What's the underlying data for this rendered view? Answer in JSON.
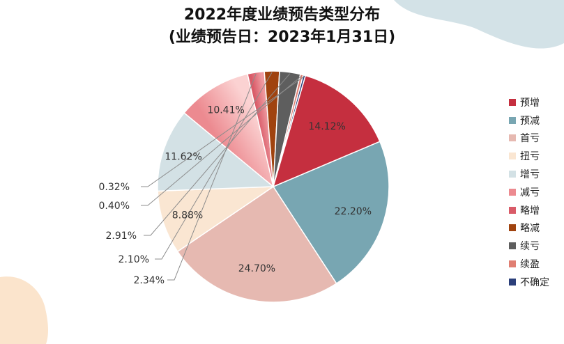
{
  "colors": {
    "background_blob": "#d3e2e7",
    "corner_blob": "#fbe4cc",
    "slice_border": "#ffffff",
    "leader_line": "#8c8c8c"
  },
  "chart_data": {
    "type": "pie",
    "title": "2022年度业绩预告类型分布",
    "subtitle": "(业绩预告日：2023年1月31日)",
    "legend_position": "right",
    "start_angle_deg": 67,
    "direction": "clockwise",
    "slices": [
      {
        "name": "预减",
        "value": 22.2,
        "label": "22.20%",
        "color": "#78a6b2",
        "color_light": "#78a6b2"
      },
      {
        "name": "首亏",
        "value": 24.7,
        "label": "24.70%",
        "color": "#e6b9b1",
        "color_light": "#e6b9b1"
      },
      {
        "name": "扭亏",
        "value": 8.88,
        "label": "8.88%",
        "color": "#fae6d2",
        "color_light": "#fae6d2"
      },
      {
        "name": "增亏",
        "value": 11.62,
        "label": "11.62%",
        "color": "#d3e1e5",
        "color_light": "#d3e1e5"
      },
      {
        "name": "减亏",
        "value": 10.41,
        "label": "10.41%",
        "color": "#ec8a90",
        "color_light": "#fbd2d2"
      },
      {
        "name": "略增",
        "value": 2.34,
        "label": "2.34%",
        "color": "#d95b68",
        "color_light": "#ee9aa0"
      },
      {
        "name": "略减",
        "value": 2.1,
        "label": "2.10%",
        "color": "#a0430f",
        "color_light": "#a0430f"
      },
      {
        "name": "续亏",
        "value": 2.91,
        "label": "2.91%",
        "color": "#5e5e5e",
        "color_light": "#5e5e5e"
      },
      {
        "name": "续盈",
        "value": 0.4,
        "label": "0.40%",
        "color": "#e07e72",
        "color_light": "#e07e72"
      },
      {
        "name": "不确定",
        "value": 0.32,
        "label": "0.32%",
        "color": "#2b3f7a",
        "color_light": "#2b3f7a"
      },
      {
        "name": "预增",
        "value": 14.12,
        "label": "14.12%",
        "color": "#c52f3f",
        "color_light": "#c52f3f"
      }
    ],
    "legend_order": [
      "预增",
      "预减",
      "首亏",
      "扭亏",
      "增亏",
      "减亏",
      "略增",
      "略减",
      "续亏",
      "续盈",
      "不确定"
    ]
  }
}
